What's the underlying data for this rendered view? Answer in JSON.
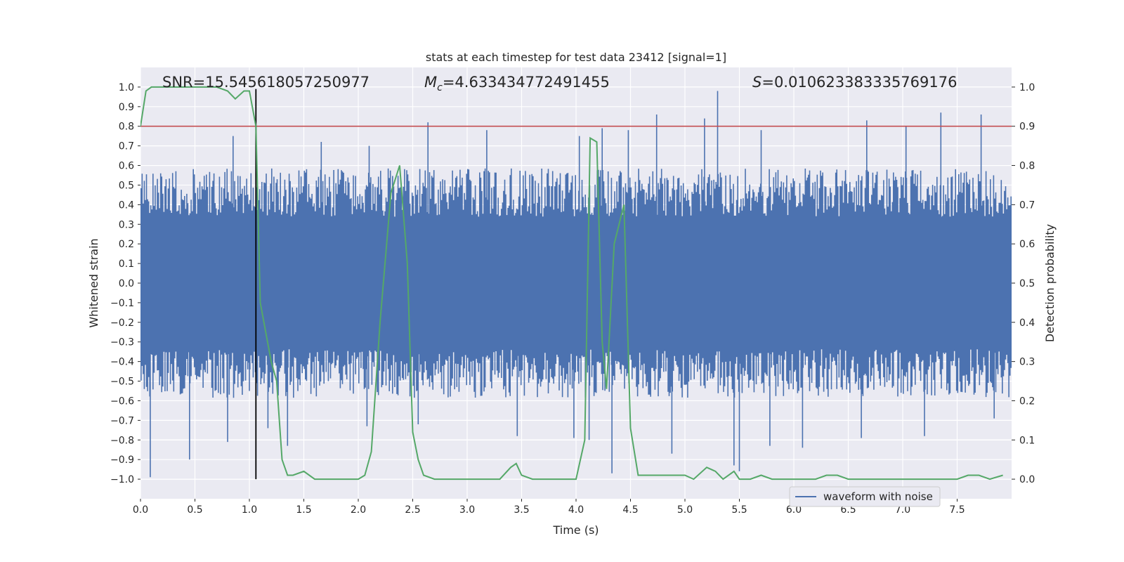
{
  "chart_data": {
    "type": "line",
    "title": "stats at each timestep for test data 23412 [signal=1]",
    "xlabel": "Time (s)",
    "ylabel_left": "Whitened strain",
    "ylabel_right": "Detection probability",
    "xlim": [
      0.0,
      8.0
    ],
    "ylim_left": [
      -1.1,
      1.1
    ],
    "ylim_right": [
      -0.05,
      1.05
    ],
    "xticks": [
      0.0,
      0.5,
      1.0,
      1.5,
      2.0,
      2.5,
      3.0,
      3.5,
      4.0,
      4.5,
      5.0,
      5.5,
      6.0,
      6.5,
      7.0,
      7.5
    ],
    "xtick_labels": [
      "0.0",
      "0.5",
      "1.0",
      "1.5",
      "2.0",
      "2.5",
      "3.0",
      "3.5",
      "4.0",
      "4.5",
      "5.0",
      "5.5",
      "6.0",
      "6.5",
      "7.0",
      "7.5"
    ],
    "yticks_left": [
      1.0,
      0.9,
      0.8,
      0.7,
      0.6,
      0.5,
      0.4,
      0.3,
      0.2,
      0.1,
      0.0,
      -0.1,
      -0.2,
      -0.3,
      -0.4,
      -0.5,
      -0.6,
      -0.7,
      -0.8,
      -0.9,
      -1.0
    ],
    "ytick_labels_left": [
      "1.0",
      "0.9",
      "0.8",
      "0.7",
      "0.6",
      "0.5",
      "0.4",
      "0.3",
      "0.2",
      "0.1",
      "0.0",
      "−0.1",
      "−0.2",
      "−0.3",
      "−0.4",
      "−0.5",
      "−0.6",
      "−0.7",
      "−0.8",
      "−0.9",
      "−1.0"
    ],
    "yticks_right": [
      1.0,
      0.9,
      0.8,
      0.7,
      0.6,
      0.5,
      0.4,
      0.3,
      0.2,
      0.1,
      0.0
    ],
    "ytick_labels_right": [
      "1.0",
      "0.9",
      "0.8",
      "0.7",
      "0.6",
      "0.5",
      "0.4",
      "0.3",
      "0.2",
      "0.1",
      "0.0"
    ],
    "annotations": {
      "snr": "SNR=15.545618057250977",
      "mc_symbol": "M",
      "mc_subscript": "c",
      "mc_value": "=4.633434772491455",
      "s_symbol": "S",
      "s_value": "=0.010623383335769176"
    },
    "legend": {
      "label": "waveform with noise",
      "location": "lower-right"
    },
    "threshold_right_axis": 0.9,
    "event_marker_time": 1.06,
    "waveform": {
      "name": "waveform with noise",
      "color": "#4c72b0",
      "samples": 800,
      "band_min_approx": -0.45,
      "band_max_approx": 0.45,
      "spikes": [
        {
          "t": 0.09,
          "v": -0.99
        },
        {
          "t": 0.45,
          "v": -0.9
        },
        {
          "t": 0.8,
          "v": -0.81
        },
        {
          "t": 0.85,
          "v": 0.75
        },
        {
          "t": 1.0,
          "v": -0.55
        },
        {
          "t": 1.17,
          "v": -0.74
        },
        {
          "t": 1.35,
          "v": -0.83
        },
        {
          "t": 1.66,
          "v": 0.72
        },
        {
          "t": 2.08,
          "v": -0.73
        },
        {
          "t": 2.1,
          "v": 0.7
        },
        {
          "t": 2.64,
          "v": 0.82
        },
        {
          "t": 2.55,
          "v": -0.72
        },
        {
          "t": 3.18,
          "v": 0.78
        },
        {
          "t": 3.46,
          "v": -0.78
        },
        {
          "t": 3.98,
          "v": -0.79
        },
        {
          "t": 4.03,
          "v": 0.75
        },
        {
          "t": 4.12,
          "v": -0.8
        },
        {
          "t": 4.24,
          "v": 0.79
        },
        {
          "t": 4.33,
          "v": -0.97
        },
        {
          "t": 4.48,
          "v": 0.78
        },
        {
          "t": 4.74,
          "v": 0.86
        },
        {
          "t": 4.88,
          "v": -0.87
        },
        {
          "t": 5.18,
          "v": 0.84
        },
        {
          "t": 5.3,
          "v": 0.98
        },
        {
          "t": 5.45,
          "v": -0.93
        },
        {
          "t": 5.5,
          "v": -0.96
        },
        {
          "t": 5.7,
          "v": 0.78
        },
        {
          "t": 5.78,
          "v": -0.83
        },
        {
          "t": 6.08,
          "v": -0.84
        },
        {
          "t": 6.62,
          "v": -0.79
        },
        {
          "t": 6.67,
          "v": 0.83
        },
        {
          "t": 7.03,
          "v": 0.8
        },
        {
          "t": 7.2,
          "v": -0.78
        },
        {
          "t": 7.35,
          "v": 0.87
        },
        {
          "t": 7.72,
          "v": 0.86
        },
        {
          "t": 7.84,
          "v": -0.69
        }
      ]
    },
    "detection_probability": {
      "name": "detection probability",
      "color": "#55a868",
      "x": [
        0.0,
        0.05,
        0.1,
        0.2,
        0.3,
        0.4,
        0.5,
        0.6,
        0.7,
        0.8,
        0.87,
        0.95,
        1.0,
        1.06,
        1.1,
        1.2,
        1.25,
        1.3,
        1.35,
        1.4,
        1.5,
        1.6,
        1.7,
        1.8,
        1.9,
        2.0,
        2.06,
        2.12,
        2.2,
        2.3,
        2.38,
        2.45,
        2.5,
        2.55,
        2.6,
        2.7,
        2.8,
        3.0,
        3.2,
        3.3,
        3.4,
        3.45,
        3.5,
        3.6,
        3.8,
        4.0,
        4.08,
        4.13,
        4.19,
        4.24,
        4.28,
        4.35,
        4.44,
        4.5,
        4.57,
        4.65,
        4.7,
        4.8,
        4.87,
        4.95,
        5.0,
        5.08,
        5.2,
        5.28,
        5.35,
        5.45,
        5.5,
        5.6,
        5.7,
        5.8,
        6.0,
        6.2,
        6.3,
        6.4,
        6.5,
        6.6,
        7.0,
        7.4,
        7.5,
        7.6,
        7.7,
        7.8,
        7.92
      ],
      "y": [
        0.9,
        0.99,
        1.0,
        1.0,
        1.0,
        1.0,
        1.0,
        1.0,
        1.0,
        0.99,
        0.97,
        0.99,
        0.99,
        0.9,
        0.45,
        0.3,
        0.25,
        0.05,
        0.01,
        0.01,
        0.02,
        0.0,
        0.0,
        0.0,
        0.0,
        0.0,
        0.01,
        0.07,
        0.4,
        0.73,
        0.8,
        0.55,
        0.12,
        0.05,
        0.01,
        0.0,
        0.0,
        0.0,
        0.0,
        0.0,
        0.03,
        0.04,
        0.01,
        0.0,
        0.0,
        0.0,
        0.1,
        0.87,
        0.86,
        0.35,
        0.23,
        0.6,
        0.7,
        0.13,
        0.01,
        0.01,
        0.01,
        0.01,
        0.01,
        0.01,
        0.01,
        0.0,
        0.03,
        0.02,
        0.0,
        0.02,
        0.0,
        0.0,
        0.01,
        0.0,
        0.0,
        0.0,
        0.01,
        0.01,
        0.0,
        0.0,
        0.0,
        0.0,
        0.0,
        0.01,
        0.01,
        0.0,
        0.01
      ]
    },
    "colors": {
      "background": "#eaeaf2",
      "threshold": "#c44e52",
      "marker": "#000000",
      "grid": "#ffffff"
    }
  }
}
